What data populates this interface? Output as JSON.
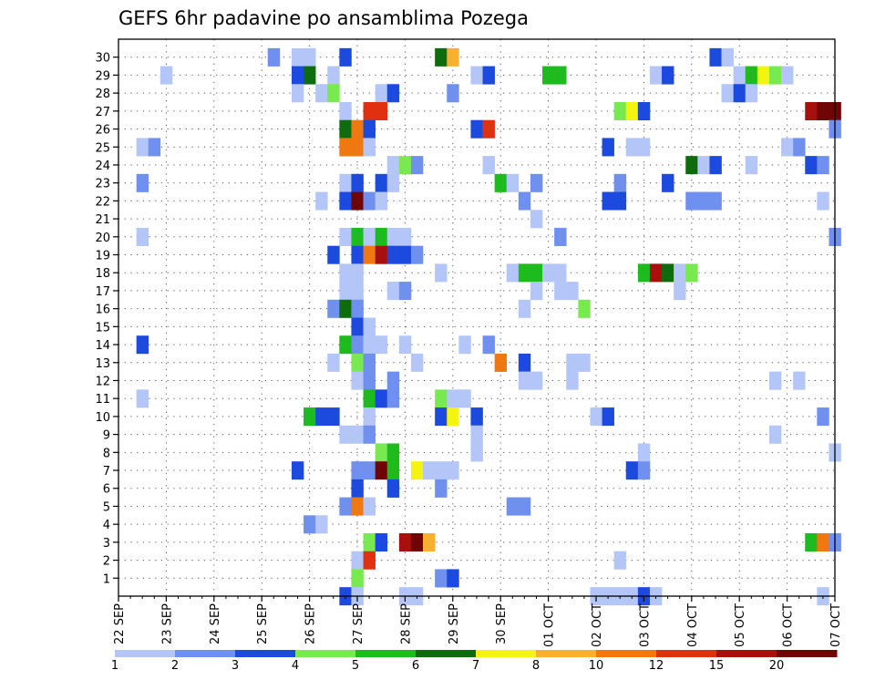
{
  "chart_data": {
    "type": "heatmap",
    "title": "GEFS 6hr padavine po ansamblima Pozega",
    "xlabel": "",
    "ylabel": "",
    "x_tick_labels": [
      "22 SEP",
      "23 SEP",
      "24 SEP",
      "25 SEP",
      "26 SEP",
      "27 SEP",
      "28 SEP",
      "29 SEP",
      "30 SEP",
      "01 OCT",
      "02 OCT",
      "03 OCT",
      "04 OCT",
      "05 OCT",
      "06 OCT",
      "07 OCT"
    ],
    "x_range": [
      0,
      60
    ],
    "y_tick_labels": [
      "1",
      "2",
      "3",
      "4",
      "5",
      "6",
      "7",
      "8",
      "9",
      "10",
      "11",
      "12",
      "13",
      "14",
      "15",
      "16",
      "17",
      "18",
      "19",
      "20",
      "21",
      "22",
      "23",
      "24",
      "25",
      "26",
      "27",
      "28",
      "29",
      "30"
    ],
    "y_range": [
      0,
      31
    ],
    "grid": true,
    "colorbar": {
      "labels": [
        "1",
        "2",
        "3",
        "4",
        "5",
        "6",
        "7",
        "8",
        "10",
        "12",
        "15",
        "20"
      ],
      "colors": [
        "#b3c6f7",
        "#6f90ee",
        "#1c4adf",
        "#78ea50",
        "#1ebb1e",
        "#0e6c0e",
        "#f4f40e",
        "#f8b030",
        "#f07810",
        "#e03010",
        "#a8100e",
        "#6e0606"
      ]
    },
    "cells_format": "[step_index, ensemble_member, color_class_index]",
    "cells": [
      [
        13,
        30,
        1
      ],
      [
        15,
        30,
        0
      ],
      [
        16,
        30,
        0
      ],
      [
        19,
        30,
        2
      ],
      [
        27,
        30,
        5
      ],
      [
        28,
        30,
        7
      ],
      [
        50,
        30,
        2
      ],
      [
        51,
        30,
        0
      ],
      [
        4,
        29,
        0
      ],
      [
        15,
        29,
        2
      ],
      [
        16,
        29,
        5
      ],
      [
        18,
        29,
        0
      ],
      [
        30,
        29,
        0
      ],
      [
        31,
        29,
        2
      ],
      [
        36,
        29,
        4
      ],
      [
        37,
        29,
        4
      ],
      [
        45,
        29,
        0
      ],
      [
        46,
        29,
        2
      ],
      [
        52,
        29,
        0
      ],
      [
        53,
        29,
        4
      ],
      [
        54,
        29,
        6
      ],
      [
        55,
        29,
        3
      ],
      [
        56,
        29,
        0
      ],
      [
        15,
        28,
        0
      ],
      [
        17,
        28,
        0
      ],
      [
        18,
        28,
        3
      ],
      [
        22,
        28,
        0
      ],
      [
        23,
        28,
        2
      ],
      [
        28,
        28,
        1
      ],
      [
        51,
        28,
        0
      ],
      [
        52,
        28,
        2
      ],
      [
        53,
        28,
        0
      ],
      [
        19,
        27,
        0
      ],
      [
        21,
        27,
        9
      ],
      [
        22,
        27,
        9
      ],
      [
        42,
        27,
        3
      ],
      [
        43,
        27,
        6
      ],
      [
        44,
        27,
        2
      ],
      [
        58,
        27,
        10
      ],
      [
        59,
        27,
        11
      ],
      [
        60,
        27,
        11
      ],
      [
        19,
        26,
        5
      ],
      [
        20,
        26,
        8
      ],
      [
        21,
        26,
        2
      ],
      [
        30,
        26,
        2
      ],
      [
        31,
        26,
        9
      ],
      [
        60,
        26,
        1
      ],
      [
        2,
        25,
        0
      ],
      [
        3,
        25,
        1
      ],
      [
        19,
        25,
        8
      ],
      [
        20,
        25,
        8
      ],
      [
        21,
        25,
        0
      ],
      [
        41,
        25,
        2
      ],
      [
        43,
        25,
        0
      ],
      [
        44,
        25,
        0
      ],
      [
        56,
        25,
        0
      ],
      [
        57,
        25,
        1
      ],
      [
        23,
        24,
        0
      ],
      [
        24,
        24,
        3
      ],
      [
        25,
        24,
        1
      ],
      [
        31,
        24,
        0
      ],
      [
        48,
        24,
        5
      ],
      [
        49,
        24,
        0
      ],
      [
        50,
        24,
        2
      ],
      [
        53,
        24,
        0
      ],
      [
        58,
        24,
        2
      ],
      [
        59,
        24,
        1
      ],
      [
        2,
        23,
        1
      ],
      [
        19,
        23,
        0
      ],
      [
        20,
        23,
        2
      ],
      [
        22,
        23,
        2
      ],
      [
        23,
        23,
        0
      ],
      [
        32,
        23,
        4
      ],
      [
        33,
        23,
        0
      ],
      [
        35,
        23,
        1
      ],
      [
        42,
        23,
        1
      ],
      [
        46,
        23,
        2
      ],
      [
        17,
        22,
        0
      ],
      [
        19,
        22,
        2
      ],
      [
        20,
        22,
        11
      ],
      [
        21,
        22,
        1
      ],
      [
        22,
        22,
        0
      ],
      [
        34,
        22,
        1
      ],
      [
        41,
        22,
        2
      ],
      [
        42,
        22,
        2
      ],
      [
        48,
        22,
        1
      ],
      [
        49,
        22,
        1
      ],
      [
        50,
        22,
        1
      ],
      [
        59,
        22,
        0
      ],
      [
        35,
        21,
        0
      ],
      [
        2,
        20,
        0
      ],
      [
        19,
        20,
        0
      ],
      [
        20,
        20,
        4
      ],
      [
        21,
        20,
        0
      ],
      [
        22,
        20,
        4
      ],
      [
        23,
        20,
        0
      ],
      [
        24,
        20,
        0
      ],
      [
        37,
        20,
        1
      ],
      [
        60,
        20,
        1
      ],
      [
        18,
        19,
        2
      ],
      [
        20,
        19,
        2
      ],
      [
        21,
        19,
        8
      ],
      [
        22,
        19,
        10
      ],
      [
        23,
        19,
        2
      ],
      [
        24,
        19,
        2
      ],
      [
        25,
        19,
        1
      ],
      [
        19,
        18,
        0
      ],
      [
        20,
        18,
        0
      ],
      [
        27,
        18,
        0
      ],
      [
        33,
        18,
        0
      ],
      [
        34,
        18,
        4
      ],
      [
        35,
        18,
        4
      ],
      [
        36,
        18,
        0
      ],
      [
        37,
        18,
        0
      ],
      [
        44,
        18,
        4
      ],
      [
        45,
        18,
        10
      ],
      [
        46,
        18,
        5
      ],
      [
        47,
        18,
        0
      ],
      [
        48,
        18,
        3
      ],
      [
        19,
        17,
        0
      ],
      [
        20,
        17,
        0
      ],
      [
        23,
        17,
        0
      ],
      [
        24,
        17,
        1
      ],
      [
        35,
        17,
        0
      ],
      [
        37,
        17,
        0
      ],
      [
        38,
        17,
        0
      ],
      [
        47,
        17,
        0
      ],
      [
        18,
        16,
        1
      ],
      [
        19,
        16,
        5
      ],
      [
        20,
        16,
        1
      ],
      [
        34,
        16,
        0
      ],
      [
        39,
        16,
        3
      ],
      [
        20,
        15,
        2
      ],
      [
        21,
        15,
        0
      ],
      [
        2,
        14,
        2
      ],
      [
        19,
        14,
        4
      ],
      [
        20,
        14,
        1
      ],
      [
        21,
        14,
        0
      ],
      [
        22,
        14,
        0
      ],
      [
        24,
        14,
        0
      ],
      [
        29,
        14,
        0
      ],
      [
        31,
        14,
        1
      ],
      [
        18,
        13,
        0
      ],
      [
        20,
        13,
        3
      ],
      [
        21,
        13,
        1
      ],
      [
        25,
        13,
        0
      ],
      [
        32,
        13,
        8
      ],
      [
        34,
        13,
        2
      ],
      [
        38,
        13,
        0
      ],
      [
        39,
        13,
        0
      ],
      [
        20,
        12,
        0
      ],
      [
        21,
        12,
        1
      ],
      [
        23,
        12,
        1
      ],
      [
        34,
        12,
        0
      ],
      [
        35,
        12,
        0
      ],
      [
        38,
        12,
        0
      ],
      [
        55,
        12,
        0
      ],
      [
        57,
        12,
        0
      ],
      [
        2,
        11,
        0
      ],
      [
        21,
        11,
        4
      ],
      [
        22,
        11,
        2
      ],
      [
        23,
        11,
        1
      ],
      [
        27,
        11,
        3
      ],
      [
        28,
        11,
        0
      ],
      [
        29,
        11,
        0
      ],
      [
        16,
        10,
        4
      ],
      [
        17,
        10,
        2
      ],
      [
        18,
        10,
        2
      ],
      [
        21,
        10,
        0
      ],
      [
        27,
        10,
        2
      ],
      [
        28,
        10,
        6
      ],
      [
        30,
        10,
        2
      ],
      [
        40,
        10,
        0
      ],
      [
        41,
        10,
        2
      ],
      [
        59,
        10,
        1
      ],
      [
        19,
        9,
        0
      ],
      [
        20,
        9,
        0
      ],
      [
        21,
        9,
        1
      ],
      [
        30,
        9,
        0
      ],
      [
        55,
        9,
        0
      ],
      [
        22,
        8,
        3
      ],
      [
        23,
        8,
        4
      ],
      [
        30,
        8,
        0
      ],
      [
        44,
        8,
        0
      ],
      [
        60,
        8,
        0
      ],
      [
        15,
        7,
        2
      ],
      [
        20,
        7,
        1
      ],
      [
        21,
        7,
        1
      ],
      [
        22,
        7,
        11
      ],
      [
        23,
        7,
        4
      ],
      [
        25,
        7,
        6
      ],
      [
        26,
        7,
        0
      ],
      [
        27,
        7,
        0
      ],
      [
        28,
        7,
        0
      ],
      [
        43,
        7,
        2
      ],
      [
        44,
        7,
        1
      ],
      [
        20,
        6,
        2
      ],
      [
        23,
        6,
        2
      ],
      [
        27,
        6,
        1
      ],
      [
        19,
        5,
        1
      ],
      [
        20,
        5,
        8
      ],
      [
        21,
        5,
        0
      ],
      [
        33,
        5,
        1
      ],
      [
        34,
        5,
        1
      ],
      [
        16,
        4,
        1
      ],
      [
        17,
        4,
        0
      ],
      [
        21,
        3,
        3
      ],
      [
        22,
        3,
        2
      ],
      [
        24,
        3,
        10
      ],
      [
        25,
        3,
        11
      ],
      [
        26,
        3,
        7
      ],
      [
        58,
        3,
        4
      ],
      [
        59,
        3,
        8
      ],
      [
        60,
        3,
        1
      ],
      [
        20,
        2,
        0
      ],
      [
        21,
        2,
        9
      ],
      [
        42,
        2,
        0
      ],
      [
        20,
        1,
        3
      ],
      [
        27,
        1,
        1
      ],
      [
        28,
        1,
        2
      ],
      [
        19,
        0,
        2
      ],
      [
        20,
        0,
        0
      ],
      [
        24,
        0,
        0
      ],
      [
        25,
        0,
        0
      ],
      [
        40,
        0,
        0
      ],
      [
        41,
        0,
        0
      ],
      [
        42,
        0,
        0
      ],
      [
        43,
        0,
        0
      ],
      [
        44,
        0,
        2
      ],
      [
        45,
        0,
        0
      ],
      [
        59,
        0,
        0
      ]
    ]
  }
}
